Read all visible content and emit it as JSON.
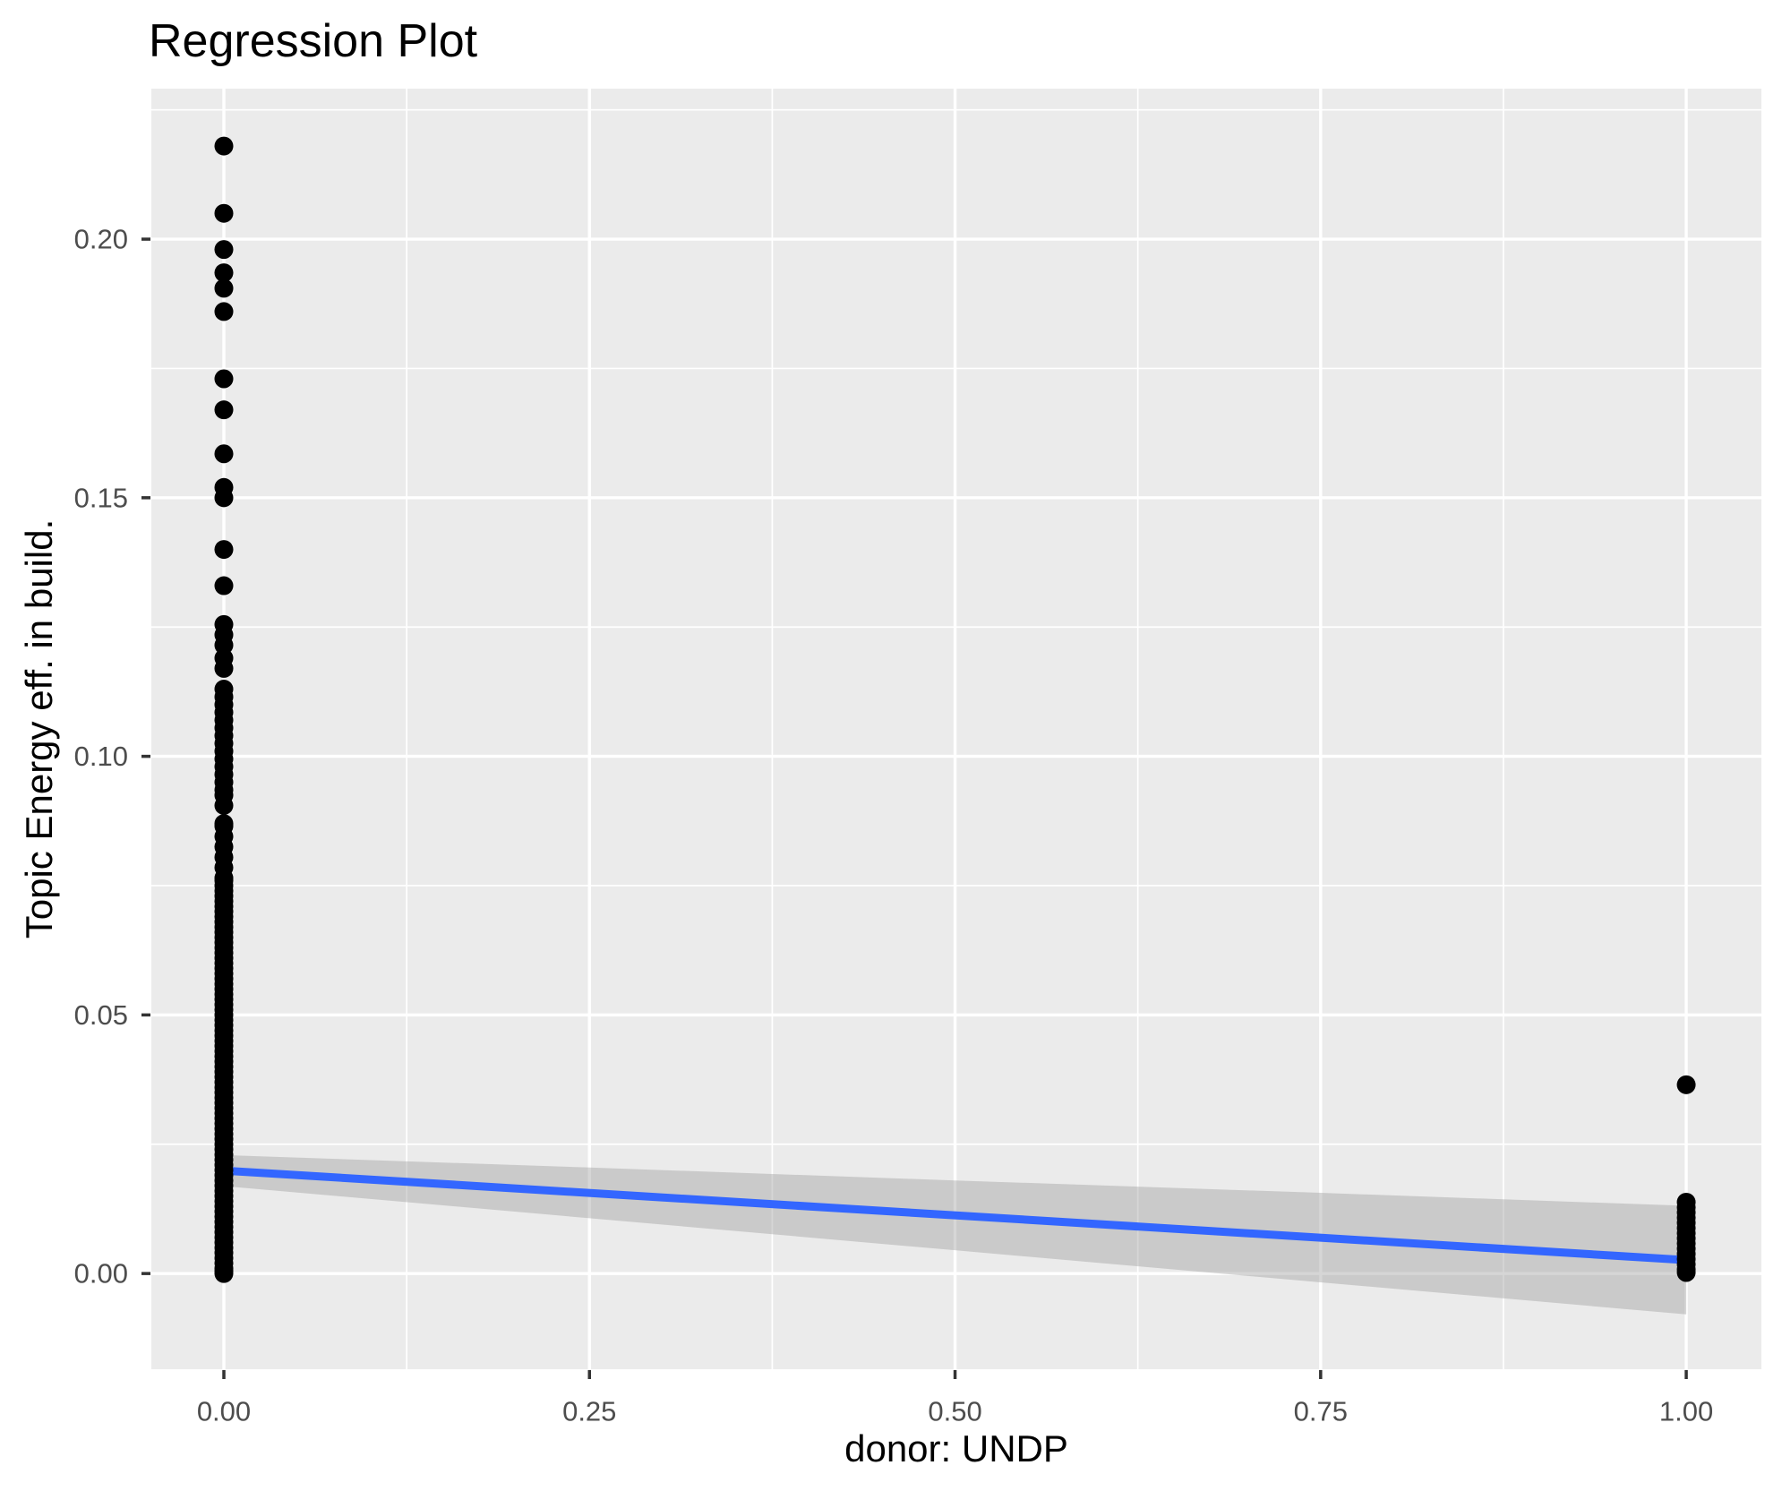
{
  "chart_data": {
    "type": "scatter",
    "title": "Regression Plot",
    "xlabel": "donor: UNDP",
    "ylabel": "Topic Energy eff. in build.",
    "xlim": [
      -0.0496,
      1.0514
    ],
    "ylim": [
      -0.0185,
      0.2291
    ],
    "grid": "on",
    "legend_position": "none",
    "x_ticks": [
      {
        "value": 0.0,
        "label": "0.00"
      },
      {
        "value": 0.25,
        "label": "0.25"
      },
      {
        "value": 0.5,
        "label": "0.50"
      },
      {
        "value": 0.75,
        "label": "0.75"
      },
      {
        "value": 1.0,
        "label": "1.00"
      }
    ],
    "y_ticks": [
      {
        "value": 0.0,
        "label": "0.00"
      },
      {
        "value": 0.05,
        "label": "0.05"
      },
      {
        "value": 0.1,
        "label": "0.10"
      },
      {
        "value": 0.15,
        "label": "0.15"
      },
      {
        "value": 0.2,
        "label": "0.20"
      }
    ],
    "x_minor_gridlines": [
      0.125,
      0.375,
      0.625,
      0.875
    ],
    "y_minor_gridlines": [
      0.025,
      0.075,
      0.125,
      0.175,
      0.225
    ],
    "colors": {
      "background": "#FFFFFF",
      "panel": "#EBEBEB",
      "gridline": "#FFFFFF",
      "point": "#000000",
      "regression_line": "#3366FF",
      "confidence_band": "rgba(153,153,153,0.40)",
      "tick_label": "#4D4D4D",
      "tick_mark": "#333333",
      "title_text": "#000000"
    },
    "series": [
      {
        "name": "donor = 0",
        "x": 0,
        "y": [
          0.218,
          0.205,
          0.198,
          0.1935,
          0.1905,
          0.186,
          0.173,
          0.167,
          0.1585,
          0.152,
          0.15,
          0.14,
          0.133,
          0.1255,
          0.1235,
          0.1215,
          0.119,
          0.117,
          0.113,
          0.1115,
          0.11,
          0.1085,
          0.107,
          0.1055,
          0.104,
          0.1025,
          0.101,
          0.0995,
          0.098,
          0.0965,
          0.095,
          0.0935,
          0.0925,
          0.0905,
          0.087,
          0.0865,
          0.0845,
          0.0825,
          0.0805,
          0.0785,
          0.0765,
          0.076,
          0.075,
          0.074,
          0.073,
          0.072,
          0.071,
          0.07,
          0.069,
          0.068,
          0.067,
          0.066,
          0.065,
          0.064,
          0.063,
          0.062,
          0.061,
          0.06,
          0.059,
          0.058,
          0.057,
          0.056,
          0.055,
          0.054,
          0.053,
          0.052,
          0.051,
          0.05,
          0.049,
          0.048,
          0.047,
          0.046,
          0.045,
          0.044,
          0.043,
          0.042,
          0.041,
          0.04,
          0.039,
          0.038,
          0.037,
          0.036,
          0.035,
          0.034,
          0.033,
          0.032,
          0.031,
          0.03,
          0.029,
          0.028,
          0.027,
          0.026,
          0.025,
          0.024,
          0.023,
          0.022,
          0.021,
          0.02,
          0.019,
          0.018,
          0.017,
          0.016,
          0.015,
          0.014,
          0.013,
          0.012,
          0.011,
          0.01,
          0.009,
          0.008,
          0.007,
          0.006,
          0.005,
          0.004,
          0.003,
          0.002,
          0.001,
          0.0005,
          0.0
        ]
      },
      {
        "name": "donor = 1",
        "x": 1,
        "y": [
          0.0365,
          0.0138,
          0.0128,
          0.0118,
          0.0108,
          0.0098,
          0.0088,
          0.0078,
          0.0068,
          0.0058,
          0.0048,
          0.0038,
          0.0028,
          0.0018,
          0.0008,
          0.0002
        ]
      }
    ],
    "regression_line": {
      "x": [
        0,
        1
      ],
      "y": [
        0.0199,
        0.0026
      ]
    },
    "confidence_band": {
      "x": [
        0,
        0.25,
        0.5,
        0.75,
        1
      ],
      "upper": [
        0.0229,
        0.0205,
        0.018,
        0.0156,
        0.0131
      ],
      "lower": [
        0.0169,
        0.0107,
        0.0045,
        -0.0017,
        -0.0079
      ]
    }
  }
}
